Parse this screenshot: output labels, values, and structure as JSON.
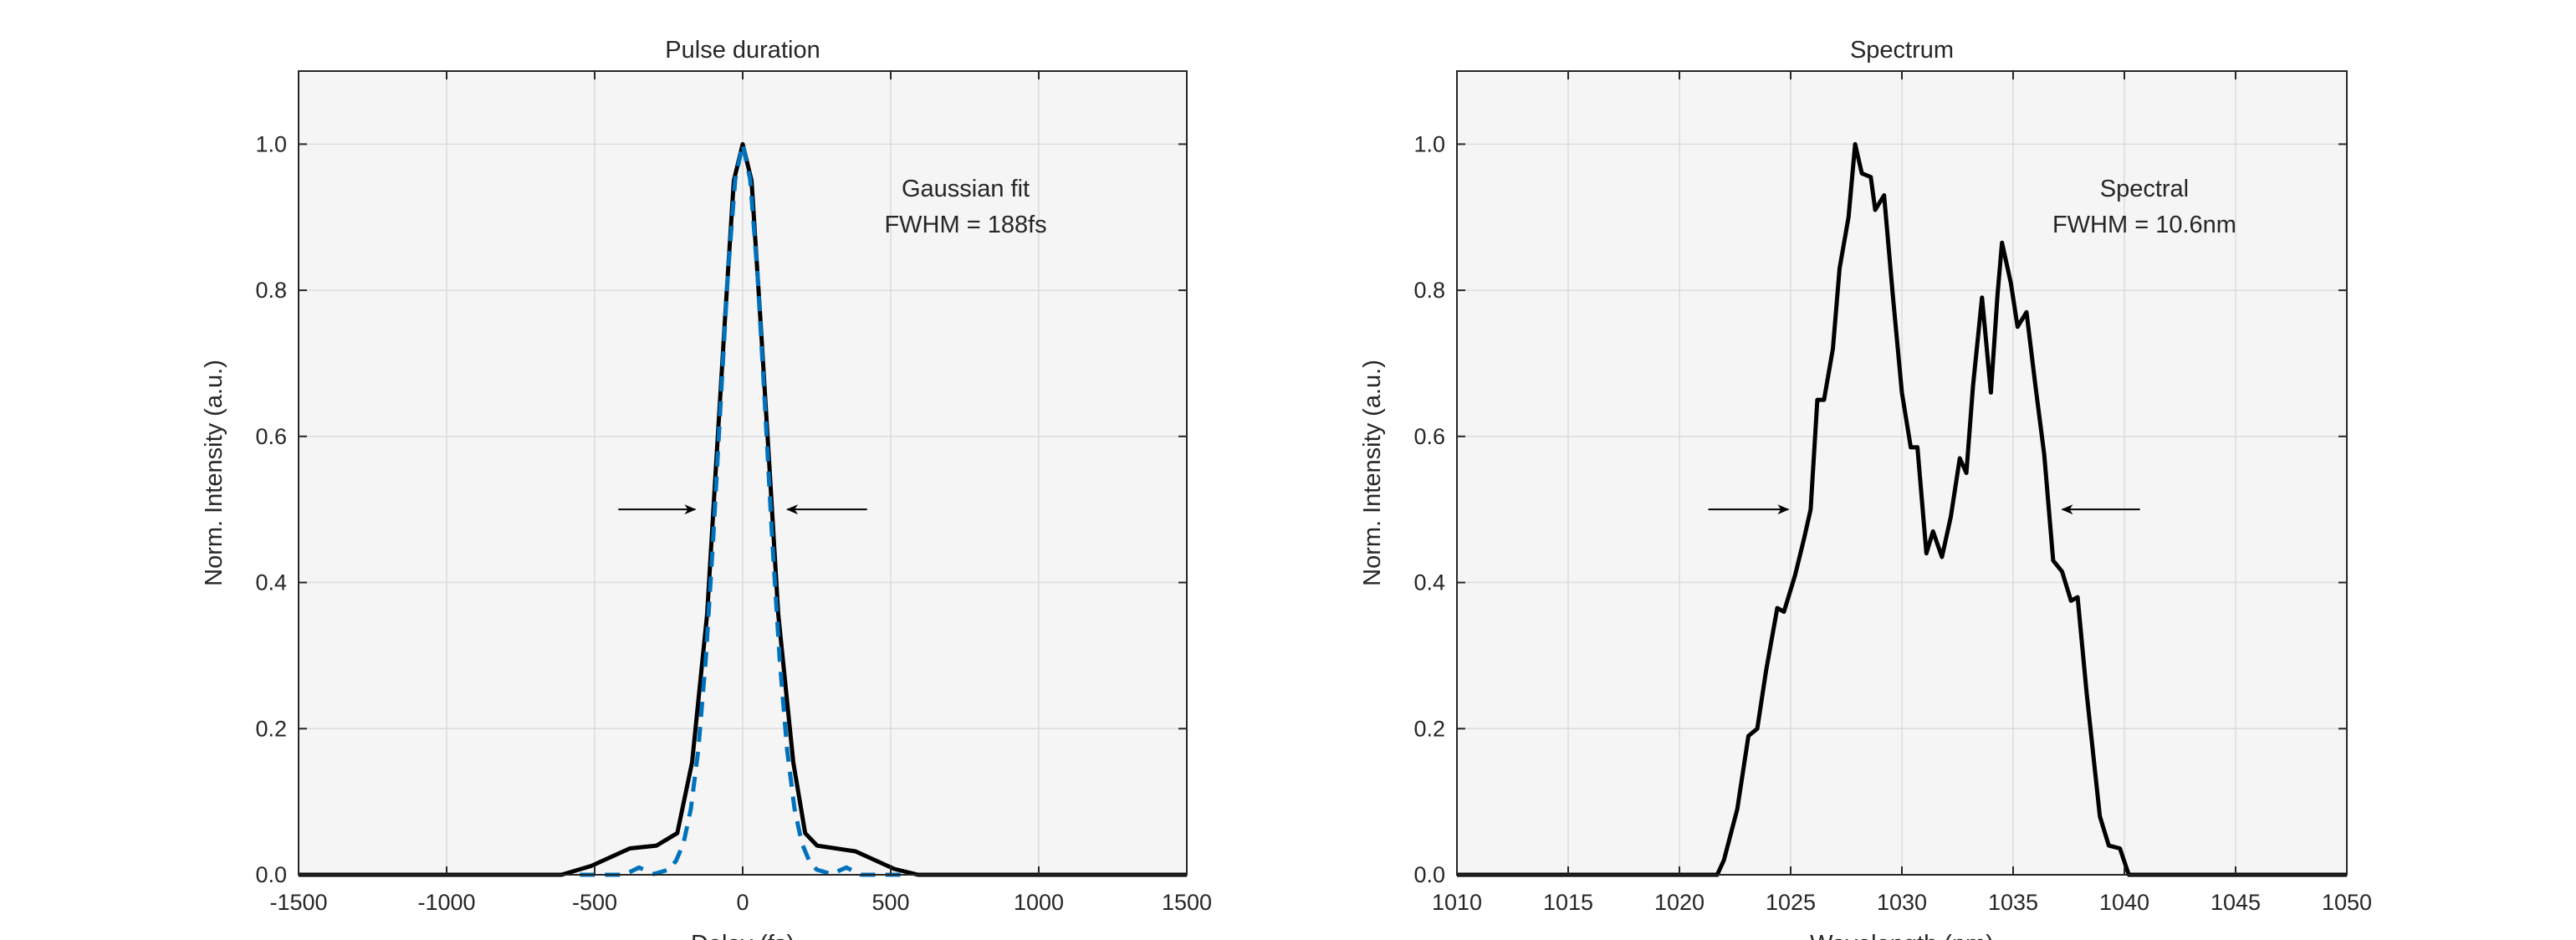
{
  "chart_data": [
    {
      "type": "line",
      "title": "Pulse duration",
      "xlabel": "Delay (fs)",
      "ylabel": "Norm. Intensity (a.u.)",
      "xlim": [
        -1500,
        1500
      ],
      "ylim": [
        0,
        1.1
      ],
      "xticks": [
        -1500,
        -1000,
        -500,
        0,
        500,
        1000,
        1500
      ],
      "yticks": [
        0,
        0.2,
        0.4,
        0.6,
        0.8,
        1.0
      ],
      "xtick_labels": [
        "-1500",
        "-1000",
        "-500",
        "0",
        "500",
        "1000",
        "1500"
      ],
      "ytick_labels": [
        "0.0",
        "0.2",
        "0.4",
        "0.6",
        "0.8",
        "1.0"
      ],
      "grid": true,
      "annotation": [
        "Gaussian fit",
        "FWHM = 188fs"
      ],
      "annotation_pos": [
        753,
        0.94
      ],
      "arrows": [
        {
          "from": [
            -420,
            0.5
          ],
          "to": [
            -160,
            0.5
          ]
        },
        {
          "from": [
            420,
            0.5
          ],
          "to": [
            150,
            0.5
          ]
        }
      ],
      "series": [
        {
          "style": "solid",
          "color": "#000000",
          "x": [
            -1500,
            -612,
            -512,
            -381,
            -291,
            -221,
            -171,
            -120,
            -90,
            -60,
            -30,
            0,
            30,
            60,
            90,
            120,
            171,
            211,
            251,
            381,
            512,
            592,
            1500
          ],
          "y": [
            0,
            0,
            0.012,
            0.036,
            0.04,
            0.057,
            0.154,
            0.357,
            0.56,
            0.76,
            0.95,
            1.0,
            0.95,
            0.76,
            0.56,
            0.357,
            0.154,
            0.057,
            0.04,
            0.032,
            0.008,
            0,
            0
          ]
        },
        {
          "style": "dashed",
          "color": "#0072BD",
          "x": [
            -550,
            -400,
            -350,
            -300,
            -250,
            -225,
            -200,
            -175,
            -150,
            -125,
            -100,
            -75,
            -50,
            -25,
            0,
            25,
            50,
            75,
            100,
            125,
            150,
            175,
            200,
            225,
            250,
            300,
            350,
            400,
            550
          ],
          "y": [
            0,
            0,
            0.01,
            0.001,
            0.007,
            0.019,
            0.043,
            0.09,
            0.171,
            0.294,
            0.457,
            0.643,
            0.822,
            0.952,
            1.0,
            0.952,
            0.822,
            0.643,
            0.457,
            0.294,
            0.171,
            0.09,
            0.043,
            0.019,
            0.007,
            0.001,
            0.01,
            0,
            0
          ]
        }
      ]
    },
    {
      "type": "line",
      "title": "Spectrum",
      "xlabel": "Wavelength (nm)",
      "ylabel": "Norm. Intensity (a.u.)",
      "xlim": [
        1010,
        1050
      ],
      "ylim": [
        0,
        1.1
      ],
      "xticks": [
        1010,
        1015,
        1020,
        1025,
        1030,
        1035,
        1040,
        1045,
        1050
      ],
      "yticks": [
        0,
        0.2,
        0.4,
        0.6,
        0.8,
        1.0
      ],
      "xtick_labels": [
        "1010",
        "1015",
        "1020",
        "1025",
        "1030",
        "1035",
        "1040",
        "1045",
        "1050"
      ],
      "ytick_labels": [
        "0.0",
        "0.2",
        "0.4",
        "0.6",
        "0.8",
        "1.0"
      ],
      "grid": true,
      "annotation": [
        "Spectral",
        "FWHM = 10.6nm"
      ],
      "annotation_pos": [
        1040.9,
        0.94
      ],
      "arrows": [
        {
          "from": [
            1021.3,
            0.5
          ],
          "to": [
            1024.9,
            0.5
          ]
        },
        {
          "from": [
            1040.7,
            0.5
          ],
          "to": [
            1037.2,
            0.5
          ]
        }
      ],
      "series": [
        {
          "style": "solid",
          "color": "#000000",
          "x": [
            1010,
            1021.7,
            1022.0,
            1022.6,
            1023.1,
            1023.5,
            1023.9,
            1024.4,
            1024.7,
            1025.2,
            1025.6,
            1025.9,
            1026.2,
            1026.5,
            1026.9,
            1027.2,
            1027.6,
            1027.9,
            1028.2,
            1028.6,
            1028.8,
            1029.2,
            1029.6,
            1030.0,
            1030.4,
            1030.7,
            1031.1,
            1031.4,
            1031.8,
            1032.2,
            1032.6,
            1032.9,
            1033.2,
            1033.6,
            1034.0,
            1034.3,
            1034.5,
            1034.9,
            1035.2,
            1035.6,
            1036.0,
            1036.4,
            1036.8,
            1037.2,
            1037.6,
            1037.9,
            1038.3,
            1038.9,
            1039.3,
            1039.8,
            1040.2,
            1050
          ],
          "y": [
            0,
            0,
            0.02,
            0.09,
            0.19,
            0.2,
            0.28,
            0.365,
            0.36,
            0.41,
            0.46,
            0.5,
            0.65,
            0.65,
            0.72,
            0.83,
            0.9,
            1.0,
            0.96,
            0.955,
            0.91,
            0.93,
            0.79,
            0.66,
            0.585,
            0.585,
            0.44,
            0.47,
            0.435,
            0.49,
            0.57,
            0.55,
            0.67,
            0.79,
            0.66,
            0.795,
            0.865,
            0.81,
            0.75,
            0.77,
            0.67,
            0.575,
            0.43,
            0.415,
            0.375,
            0.38,
            0.25,
            0.08,
            0.04,
            0.036,
            0,
            0
          ]
        }
      ]
    }
  ]
}
